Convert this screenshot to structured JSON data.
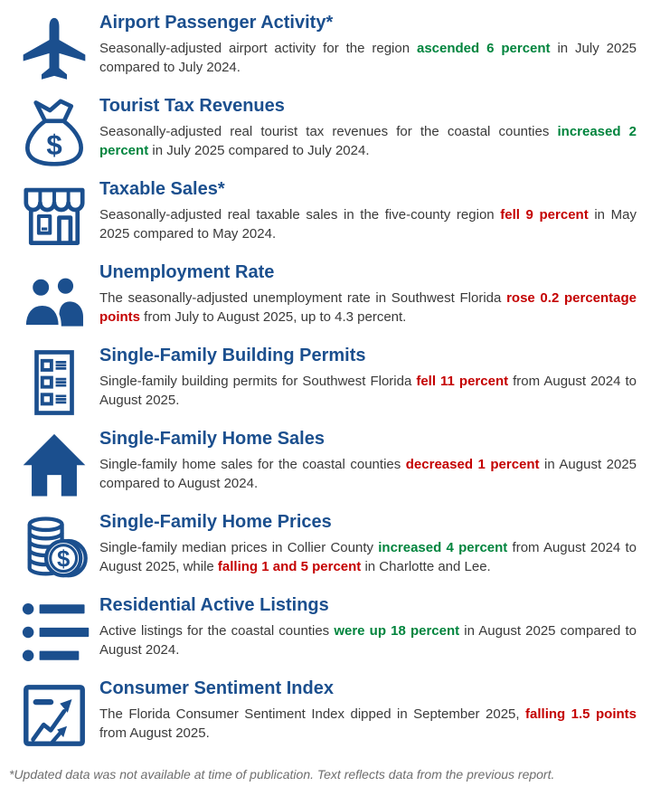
{
  "page": {
    "footnote": "*Updated data was not available at time of publication. Text reflects data from the previous report.",
    "colors": {
      "brand_blue": "#1B4F8E",
      "positive_green": "#00843D",
      "negative_red": "#C40000",
      "body_text": "#3A3A3A",
      "footnote_gray": "#6E6E6E"
    }
  },
  "sections": [
    {
      "icon": "airplane-icon",
      "title": "Airport Passenger Activity*",
      "segments": [
        {
          "text": "Seasonally-adjusted airport activity for the region ",
          "tone": "normal"
        },
        {
          "text": "ascended 6 percent",
          "tone": "up"
        },
        {
          "text": " in July 2025 compared to July 2024.",
          "tone": "normal"
        }
      ]
    },
    {
      "icon": "money-bag-icon",
      "title": "Tourist Tax Revenues",
      "segments": [
        {
          "text": "Seasonally-adjusted real tourist tax revenues for the coastal counties ",
          "tone": "normal"
        },
        {
          "text": "increased 2 percent",
          "tone": "up"
        },
        {
          "text": " in July 2025 compared to July 2024.",
          "tone": "normal"
        }
      ]
    },
    {
      "icon": "storefront-icon",
      "title": "Taxable Sales*",
      "segments": [
        {
          "text": "Seasonally-adjusted real taxable sales in the five-county region ",
          "tone": "normal"
        },
        {
          "text": "fell 9 percent",
          "tone": "down"
        },
        {
          "text": " in May 2025 compared to May 2024.",
          "tone": "normal"
        }
      ]
    },
    {
      "icon": "people-icon",
      "title": "Unemployment Rate",
      "segments": [
        {
          "text": "The seasonally-adjusted unemployment rate in Southwest Florida ",
          "tone": "normal"
        },
        {
          "text": "rose 0.2 percentage points",
          "tone": "down"
        },
        {
          "text": " from July to August 2025, up to 4.3 percent.",
          "tone": "normal"
        }
      ]
    },
    {
      "icon": "checklist-document-icon",
      "title": "Single-Family Building Permits",
      "segments": [
        {
          "text": "Single-family building permits for Southwest Florida ",
          "tone": "normal"
        },
        {
          "text": "fell 11 percent",
          "tone": "down"
        },
        {
          "text": " from August 2024 to August 2025.",
          "tone": "normal"
        }
      ]
    },
    {
      "icon": "house-icon",
      "title": "Single-Family Home Sales",
      "segments": [
        {
          "text": "Single-family home sales for the coastal counties ",
          "tone": "normal"
        },
        {
          "text": "decreased 1 percent",
          "tone": "down"
        },
        {
          "text": " in August 2025 compared to August 2024.",
          "tone": "normal"
        }
      ]
    },
    {
      "icon": "coins-icon",
      "title": "Single-Family Home Prices",
      "segments": [
        {
          "text": "Single-family median prices in Collier County ",
          "tone": "normal"
        },
        {
          "text": "increased 4 percent",
          "tone": "up"
        },
        {
          "text": " from August 2024 to August 2025, while ",
          "tone": "normal"
        },
        {
          "text": "falling 1 and 5 percent",
          "tone": "down"
        },
        {
          "text": " in Charlotte and Lee.",
          "tone": "normal"
        }
      ]
    },
    {
      "icon": "bullet-list-icon",
      "title": "Residential Active Listings",
      "segments": [
        {
          "text": "Active listings for the coastal counties ",
          "tone": "normal"
        },
        {
          "text": "were up 18 percent",
          "tone": "up"
        },
        {
          "text": " in August 2025 compared to August 2024.",
          "tone": "normal"
        }
      ]
    },
    {
      "icon": "line-chart-icon",
      "title": "Consumer Sentiment Index",
      "segments": [
        {
          "text": "The Florida Consumer Sentiment Index dipped in September 2025, ",
          "tone": "normal"
        },
        {
          "text": "falling 1.5 points",
          "tone": "down"
        },
        {
          "text": " from August 2025.",
          "tone": "normal"
        }
      ]
    }
  ]
}
